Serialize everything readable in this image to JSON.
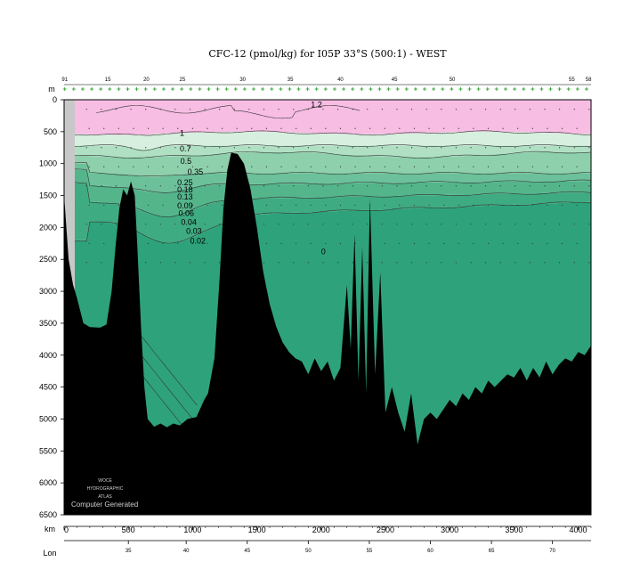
{
  "chart_data": {
    "type": "heatmap",
    "title": "CFC-12 (pmol/kg) for I05P 33°S (500:1) - WEST",
    "ylabel": "m",
    "xlabel": "km",
    "x2label": "Lon",
    "ylim": [
      0,
      6500
    ],
    "xlim": [
      0,
      4100
    ],
    "y_ticks": [
      0,
      500,
      1000,
      1500,
      2000,
      2500,
      3000,
      3500,
      4000,
      4500,
      5000,
      5500,
      6000,
      6500
    ],
    "x_ticks_km": [
      0,
      500,
      1000,
      1500,
      2000,
      2500,
      3000,
      3500,
      4000
    ],
    "lon_ticks": [
      {
        "label": "35",
        "km": 500
      },
      {
        "label": "40",
        "km": 950
      },
      {
        "label": "45",
        "km": 1425
      },
      {
        "label": "50",
        "km": 1900
      },
      {
        "label": "55",
        "km": 2375
      },
      {
        "label": "60",
        "km": 2850
      },
      {
        "label": "65",
        "km": 3325
      },
      {
        "label": "70",
        "km": 3800
      }
    ],
    "station_labels": [
      {
        "label": "91",
        "km": 5
      },
      {
        "label": "15",
        "km": 340
      },
      {
        "label": "20",
        "km": 640
      },
      {
        "label": "25",
        "km": 920
      },
      {
        "label": "30",
        "km": 1390
      },
      {
        "label": "35",
        "km": 1760
      },
      {
        "label": "40",
        "km": 2150
      },
      {
        "label": "45",
        "km": 2570
      },
      {
        "label": "50",
        "km": 3020
      },
      {
        "label": "55",
        "km": 3950
      },
      {
        "label": "58",
        "km": 4080
      }
    ],
    "contour_levels": [
      {
        "value": "1.2",
        "km": 1920,
        "depth": 80
      },
      {
        "value": "1",
        "km": 900,
        "depth": 520
      },
      {
        "value": "0.7",
        "km": 900,
        "depth": 770
      },
      {
        "value": "0.5",
        "km": 905,
        "depth": 960
      },
      {
        "value": "0.35",
        "km": 960,
        "depth": 1130
      },
      {
        "value": "0.25",
        "km": 880,
        "depth": 1300
      },
      {
        "value": "0.18",
        "km": 880,
        "depth": 1410
      },
      {
        "value": "0.13",
        "km": 880,
        "depth": 1520
      },
      {
        "value": "0.09",
        "km": 880,
        "depth": 1660
      },
      {
        "value": "0.06",
        "km": 890,
        "depth": 1780
      },
      {
        "value": "0.04",
        "km": 910,
        "depth": 1920
      },
      {
        "value": "0.03",
        "km": 950,
        "depth": 2060
      },
      {
        "value": "0.02",
        "km": 980,
        "depth": 2210
      },
      {
        "value": "0",
        "km": 2000,
        "depth": 2380
      }
    ],
    "color_bands": [
      {
        "range": ">1",
        "color": "#f7bde3"
      },
      {
        "range": "0.7-1",
        "color": "#d6efdf"
      },
      {
        "range": "0.5-0.7",
        "color": "#b0e0c4"
      },
      {
        "range": "0.35-0.5",
        "color": "#8ed0ac"
      },
      {
        "range": "0.18-0.35",
        "color": "#6cc19a"
      },
      {
        "range": "0.09-0.18",
        "color": "#54b58b"
      },
      {
        "range": "0.04-0.09",
        "color": "#3fab82"
      },
      {
        "range": "<0.04",
        "color": "#2ea37b"
      }
    ],
    "bathymetry": [
      [
        0,
        1500
      ],
      [
        35,
        2500
      ],
      [
        70,
        2900
      ],
      [
        100,
        3100
      ],
      [
        150,
        3500
      ],
      [
        200,
        3560
      ],
      [
        280,
        3570
      ],
      [
        330,
        3520
      ],
      [
        370,
        3000
      ],
      [
        400,
        2300
      ],
      [
        430,
        1700
      ],
      [
        460,
        1400
      ],
      [
        490,
        1500
      ],
      [
        520,
        1280
      ],
      [
        550,
        1500
      ],
      [
        570,
        2300
      ],
      [
        600,
        3600
      ],
      [
        625,
        4500
      ],
      [
        650,
        5000
      ],
      [
        700,
        5120
      ],
      [
        750,
        5070
      ],
      [
        800,
        5130
      ],
      [
        850,
        5070
      ],
      [
        900,
        5100
      ],
      [
        960,
        5000
      ],
      [
        1030,
        4970
      ],
      [
        1090,
        4700
      ],
      [
        1120,
        4600
      ],
      [
        1170,
        4050
      ],
      [
        1210,
        2800
      ],
      [
        1240,
        1700
      ],
      [
        1270,
        1100
      ],
      [
        1300,
        830
      ],
      [
        1350,
        850
      ],
      [
        1400,
        1000
      ],
      [
        1450,
        1400
      ],
      [
        1500,
        2000
      ],
      [
        1550,
        2700
      ],
      [
        1600,
        3200
      ],
      [
        1650,
        3550
      ],
      [
        1700,
        3800
      ],
      [
        1750,
        3950
      ],
      [
        1800,
        4050
      ],
      [
        1850,
        4100
      ],
      [
        1900,
        4300
      ],
      [
        1950,
        4050
      ],
      [
        2000,
        4250
      ],
      [
        2050,
        4100
      ],
      [
        2100,
        4400
      ],
      [
        2150,
        4200
      ],
      [
        2200,
        2900
      ],
      [
        2230,
        3900
      ],
      [
        2260,
        2100
      ],
      [
        2290,
        4400
      ],
      [
        2320,
        2300
      ],
      [
        2350,
        4600
      ],
      [
        2380,
        1550
      ],
      [
        2420,
        4300
      ],
      [
        2460,
        2700
      ],
      [
        2500,
        4900
      ],
      [
        2550,
        4500
      ],
      [
        2600,
        4900
      ],
      [
        2650,
        5200
      ],
      [
        2700,
        4600
      ],
      [
        2750,
        5400
      ],
      [
        2800,
        5000
      ],
      [
        2850,
        4900
      ],
      [
        2900,
        5000
      ],
      [
        2950,
        4850
      ],
      [
        3000,
        4700
      ],
      [
        3050,
        4800
      ],
      [
        3100,
        4600
      ],
      [
        3150,
        4700
      ],
      [
        3200,
        4500
      ],
      [
        3250,
        4600
      ],
      [
        3300,
        4400
      ],
      [
        3350,
        4500
      ],
      [
        3400,
        4400
      ],
      [
        3450,
        4300
      ],
      [
        3500,
        4350
      ],
      [
        3550,
        4200
      ],
      [
        3600,
        4400
      ],
      [
        3650,
        4200
      ],
      [
        3700,
        4350
      ],
      [
        3750,
        4100
      ],
      [
        3800,
        4300
      ],
      [
        3850,
        4150
      ],
      [
        3900,
        4050
      ],
      [
        3950,
        4100
      ],
      [
        4000,
        3950
      ],
      [
        4050,
        4000
      ],
      [
        4100,
        3850
      ]
    ]
  },
  "watermark": {
    "line1": "WOCE",
    "line2": "HYDROGRAPHIC",
    "line3": "ATLAS",
    "line4": "Computer Generated"
  }
}
